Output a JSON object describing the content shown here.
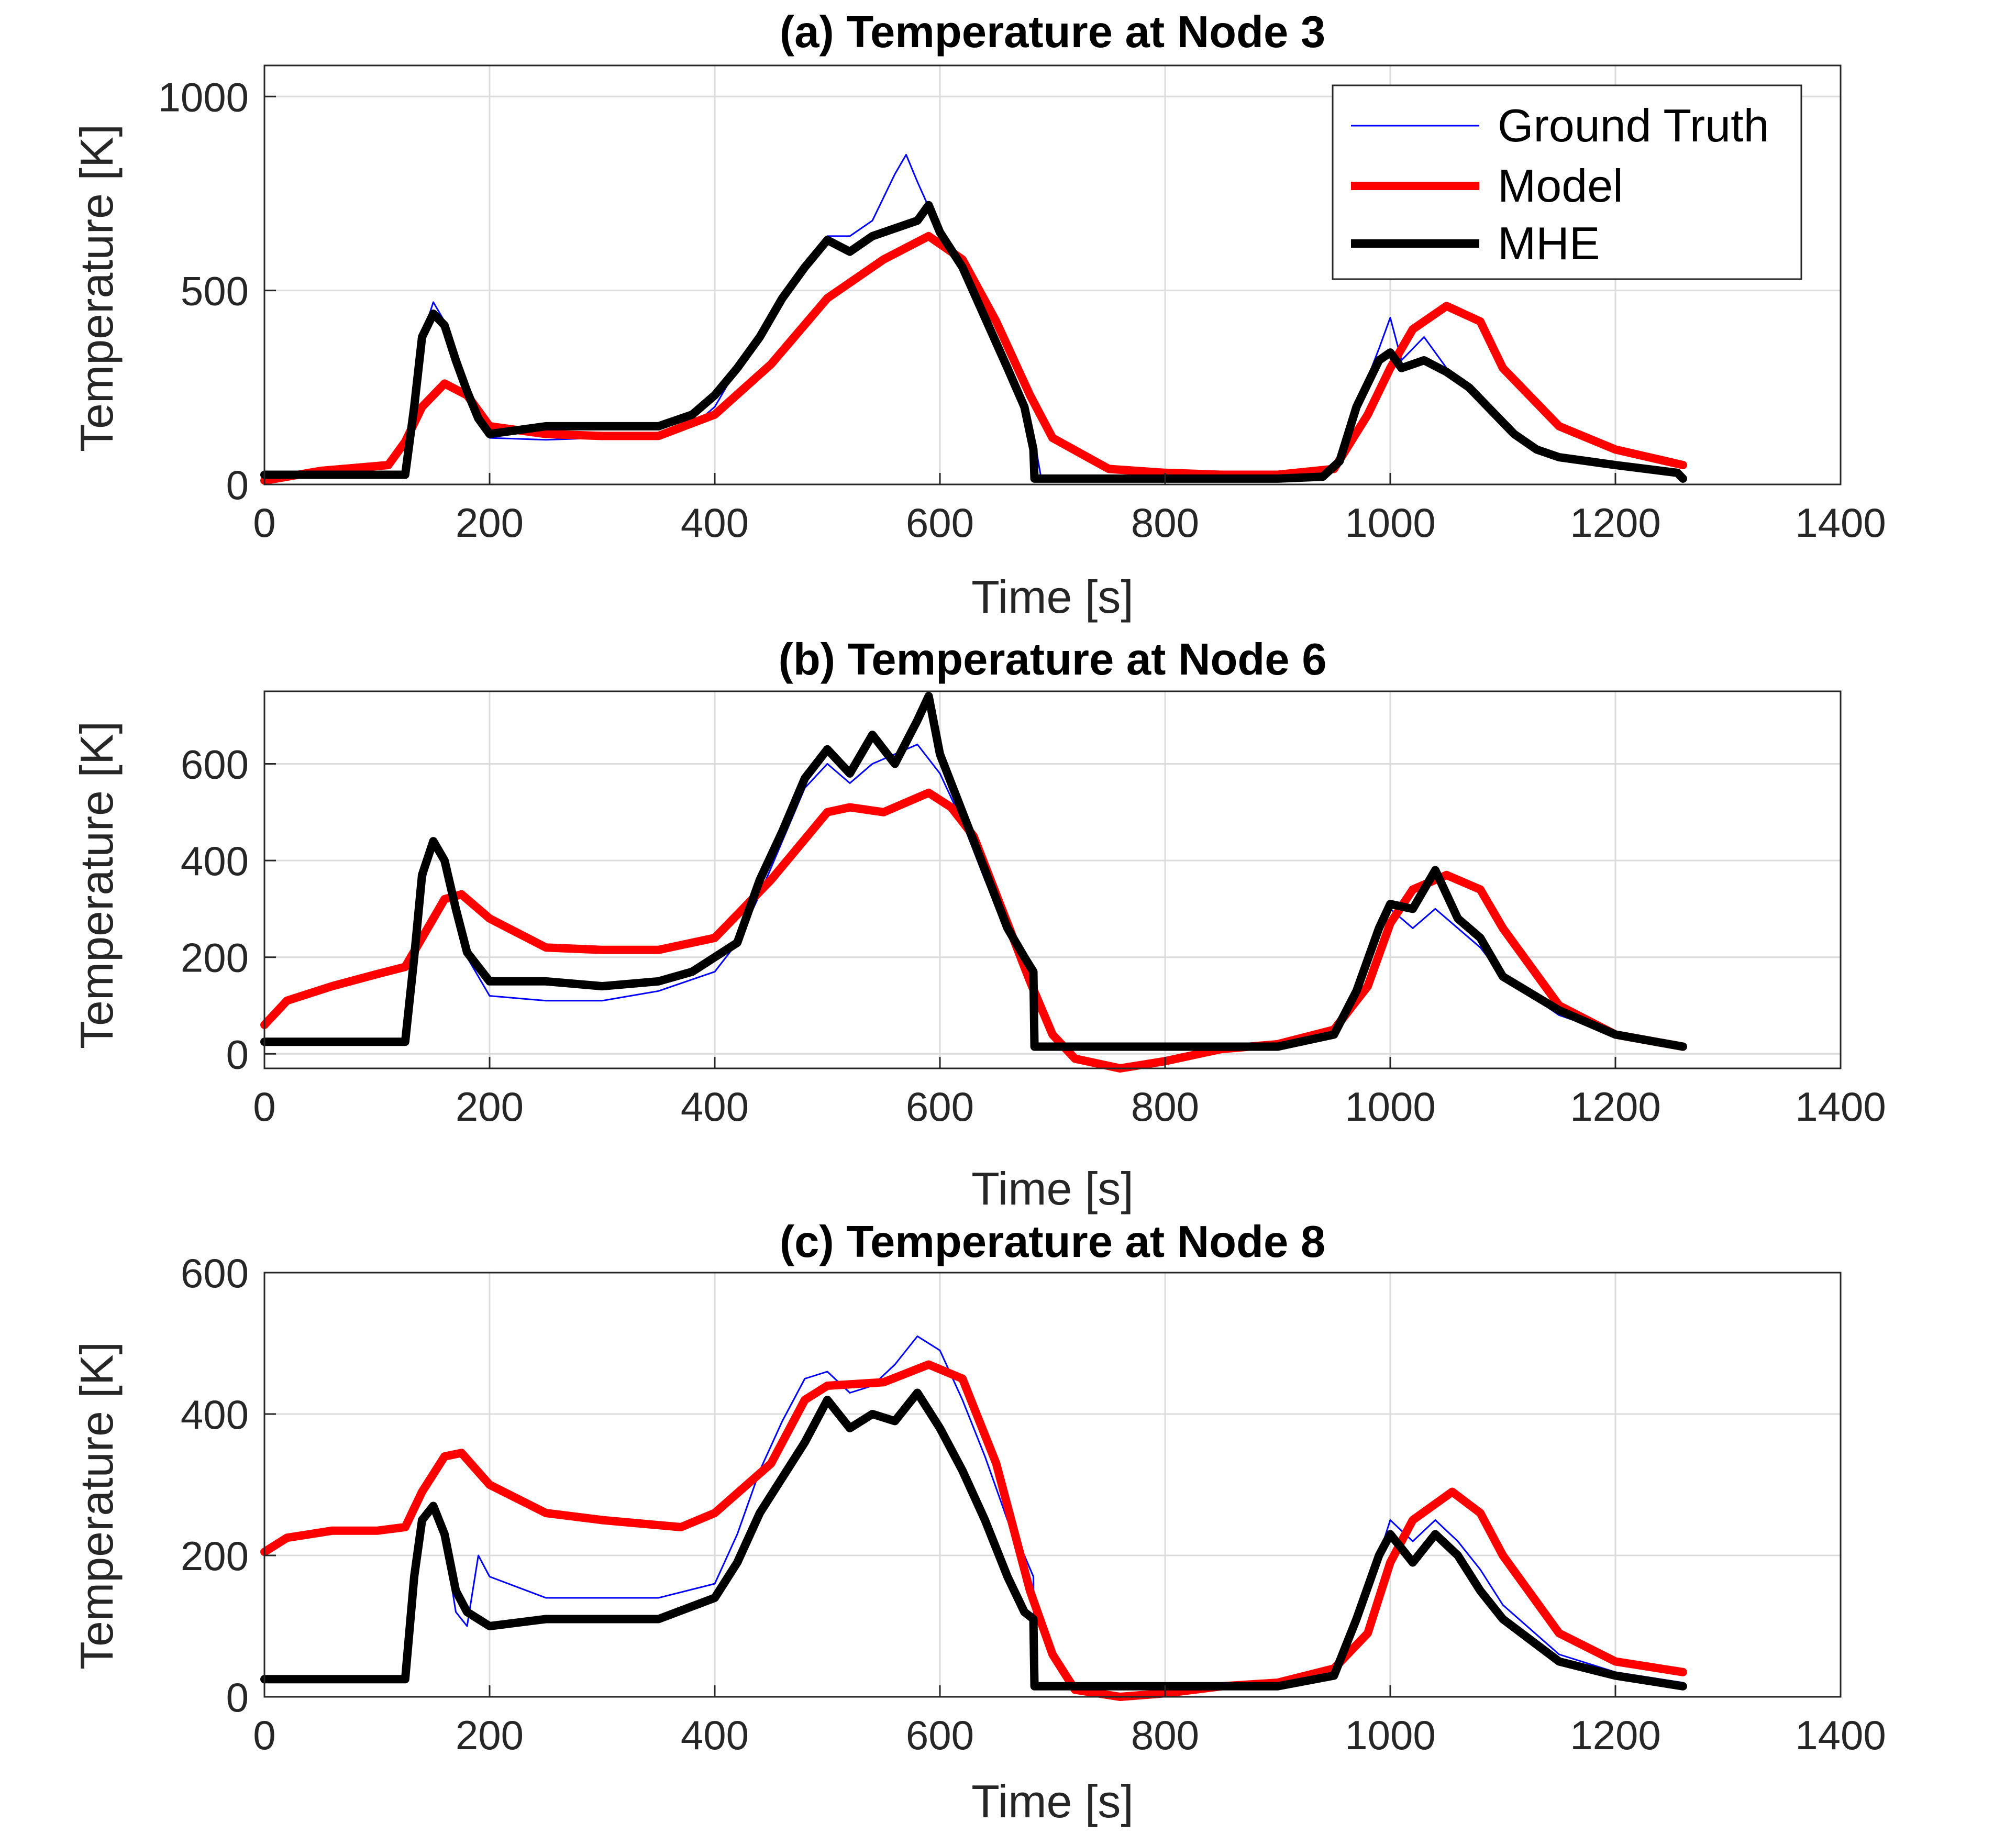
{
  "chart_data": [
    {
      "type": "line",
      "title": "(a) Temperature at Node 3",
      "xlabel": "Time [s]",
      "ylabel": "Temperature [K]",
      "xlim": [
        0,
        1400
      ],
      "ylim": [
        0,
        1080
      ],
      "xticks": [
        0,
        200,
        400,
        600,
        800,
        1000,
        1200,
        1400
      ],
      "yticks": [
        0,
        500,
        1000
      ],
      "grid": true,
      "legend_position": "top-right",
      "series": [
        {
          "name": "Ground Truth",
          "style": "thin",
          "x": [
            0,
            125,
            133,
            140,
            150,
            160,
            170,
            180,
            190,
            200,
            250,
            300,
            350,
            380,
            400,
            420,
            440,
            460,
            480,
            500,
            520,
            540,
            560,
            570,
            580,
            600,
            620,
            640,
            660,
            675,
            683,
            690,
            800,
            900,
            940,
            955,
            970,
            990,
            1000,
            1010,
            1030,
            1050,
            1070,
            1090,
            1110,
            1130,
            1150,
            1200,
            1255,
            1260
          ],
          "y": [
            25,
            30,
            180,
            380,
            470,
            420,
            330,
            250,
            180,
            120,
            115,
            120,
            125,
            150,
            200,
            300,
            380,
            470,
            560,
            640,
            640,
            680,
            800,
            850,
            780,
            650,
            550,
            420,
            300,
            200,
            130,
            15,
            15,
            15,
            20,
            60,
            200,
            350,
            430,
            320,
            380,
            300,
            260,
            200,
            140,
            100,
            70,
            50,
            35,
            20
          ]
        },
        {
          "name": "Model",
          "style": "red",
          "x": [
            0,
            50,
            110,
            125,
            140,
            160,
            180,
            200,
            250,
            300,
            350,
            400,
            450,
            500,
            550,
            590,
            620,
            650,
            680,
            700,
            750,
            800,
            850,
            900,
            950,
            980,
            1000,
            1020,
            1050,
            1080,
            1100,
            1150,
            1200,
            1260
          ],
          "y": [
            10,
            35,
            50,
            110,
            200,
            260,
            230,
            150,
            130,
            125,
            125,
            180,
            310,
            480,
            580,
            640,
            580,
            420,
            230,
            120,
            40,
            30,
            25,
            25,
            40,
            180,
            300,
            400,
            460,
            420,
            300,
            150,
            90,
            50
          ]
        },
        {
          "name": "MHE",
          "style": "black",
          "x": [
            0,
            125,
            133,
            140,
            150,
            160,
            170,
            180,
            190,
            200,
            250,
            300,
            350,
            380,
            400,
            420,
            440,
            460,
            480,
            500,
            520,
            540,
            560,
            580,
            590,
            600,
            620,
            640,
            660,
            675,
            683,
            684,
            800,
            900,
            940,
            955,
            970,
            990,
            1000,
            1010,
            1030,
            1050,
            1070,
            1090,
            1110,
            1130,
            1150,
            1200,
            1255,
            1260
          ],
          "y": [
            25,
            25,
            200,
            380,
            440,
            410,
            320,
            240,
            170,
            130,
            150,
            150,
            150,
            180,
            230,
            300,
            380,
            480,
            560,
            630,
            600,
            640,
            660,
            680,
            720,
            650,
            560,
            430,
            300,
            200,
            90,
            15,
            15,
            15,
            20,
            60,
            200,
            320,
            340,
            300,
            320,
            290,
            250,
            190,
            130,
            90,
            70,
            50,
            30,
            15
          ]
        }
      ]
    },
    {
      "type": "line",
      "title": "(b) Temperature at Node 6",
      "xlabel": "Time [s]",
      "ylabel": "Temperature [K]",
      "xlim": [
        0,
        1400
      ],
      "ylim": [
        -30,
        750
      ],
      "xticks": [
        0,
        200,
        400,
        600,
        800,
        1000,
        1200,
        1400
      ],
      "yticks": [
        0,
        200,
        400,
        600
      ],
      "grid": true,
      "series": [
        {
          "name": "Ground Truth",
          "style": "thin",
          "x": [
            0,
            125,
            133,
            140,
            150,
            160,
            170,
            180,
            200,
            250,
            300,
            350,
            400,
            420,
            440,
            460,
            480,
            500,
            520,
            540,
            560,
            580,
            600,
            620,
            640,
            660,
            675,
            683,
            684,
            900,
            950,
            970,
            990,
            1000,
            1020,
            1040,
            1060,
            1080,
            1100,
            1150,
            1200,
            1260
          ],
          "y": [
            25,
            25,
            180,
            340,
            430,
            400,
            300,
            200,
            120,
            110,
            110,
            130,
            170,
            230,
            330,
            440,
            550,
            600,
            560,
            600,
            620,
            640,
            580,
            480,
            360,
            250,
            190,
            170,
            15,
            15,
            40,
            130,
            250,
            300,
            260,
            300,
            260,
            220,
            160,
            80,
            40,
            20
          ]
        },
        {
          "name": "Model",
          "style": "red",
          "x": [
            0,
            20,
            60,
            100,
            125,
            140,
            160,
            175,
            200,
            250,
            300,
            350,
            400,
            450,
            500,
            520,
            550,
            590,
            610,
            630,
            650,
            680,
            700,
            720,
            760,
            800,
            850,
            900,
            950,
            980,
            1000,
            1020,
            1050,
            1080,
            1100,
            1150,
            1200,
            1260
          ],
          "y": [
            60,
            110,
            140,
            165,
            180,
            240,
            320,
            330,
            280,
            220,
            215,
            215,
            240,
            360,
            500,
            510,
            500,
            540,
            510,
            450,
            330,
            150,
            40,
            -10,
            -30,
            -15,
            10,
            20,
            50,
            140,
            270,
            340,
            370,
            340,
            260,
            100,
            40,
            15
          ]
        },
        {
          "name": "MHE",
          "style": "black",
          "x": [
            0,
            125,
            133,
            140,
            150,
            160,
            170,
            180,
            200,
            250,
            300,
            350,
            380,
            400,
            420,
            440,
            460,
            480,
            500,
            520,
            540,
            560,
            580,
            590,
            600,
            620,
            640,
            660,
            675,
            683,
            684,
            900,
            950,
            970,
            990,
            1000,
            1020,
            1040,
            1060,
            1080,
            1100,
            1150,
            1200,
            1260
          ],
          "y": [
            25,
            25,
            200,
            370,
            440,
            400,
            300,
            210,
            150,
            150,
            140,
            150,
            170,
            200,
            230,
            360,
            460,
            570,
            630,
            580,
            660,
            600,
            690,
            740,
            620,
            500,
            380,
            260,
            200,
            170,
            15,
            15,
            40,
            130,
            260,
            310,
            300,
            380,
            280,
            240,
            160,
            90,
            40,
            15
          ]
        }
      ]
    },
    {
      "type": "line",
      "title": "(c) Temperature at Node 8",
      "xlabel": "Time [s]",
      "ylabel": "Temperature [K]",
      "xlim": [
        0,
        1400
      ],
      "ylim": [
        0,
        600
      ],
      "xticks": [
        0,
        200,
        400,
        600,
        800,
        1000,
        1200,
        1400
      ],
      "yticks": [
        0,
        200,
        400,
        600
      ],
      "grid": true,
      "series": [
        {
          "name": "Ground Truth",
          "style": "thin",
          "x": [
            0,
            125,
            133,
            140,
            150,
            160,
            170,
            180,
            190,
            200,
            250,
            300,
            350,
            400,
            420,
            440,
            460,
            480,
            500,
            520,
            540,
            560,
            580,
            600,
            620,
            640,
            660,
            675,
            683,
            684,
            900,
            950,
            970,
            990,
            1000,
            1020,
            1040,
            1060,
            1080,
            1100,
            1150,
            1200,
            1260
          ],
          "y": [
            25,
            25,
            150,
            250,
            270,
            220,
            120,
            100,
            200,
            170,
            140,
            140,
            140,
            160,
            230,
            320,
            390,
            450,
            460,
            430,
            440,
            470,
            510,
            490,
            420,
            340,
            250,
            200,
            170,
            15,
            15,
            30,
            110,
            200,
            250,
            220,
            250,
            220,
            180,
            130,
            60,
            35,
            20
          ]
        },
        {
          "name": "Model",
          "style": "red",
          "x": [
            0,
            20,
            60,
            100,
            125,
            140,
            160,
            175,
            200,
            250,
            300,
            370,
            400,
            450,
            480,
            500,
            550,
            590,
            620,
            650,
            680,
            700,
            720,
            760,
            800,
            850,
            900,
            950,
            980,
            1000,
            1020,
            1055,
            1080,
            1100,
            1150,
            1200,
            1260
          ],
          "y": [
            205,
            225,
            235,
            235,
            240,
            290,
            340,
            345,
            300,
            260,
            250,
            240,
            260,
            330,
            420,
            440,
            445,
            470,
            450,
            330,
            150,
            60,
            10,
            0,
            5,
            15,
            20,
            40,
            90,
            190,
            250,
            290,
            260,
            200,
            90,
            50,
            35
          ]
        },
        {
          "name": "MHE",
          "style": "black",
          "x": [
            0,
            125,
            133,
            140,
            150,
            160,
            170,
            180,
            200,
            250,
            300,
            350,
            400,
            420,
            440,
            460,
            480,
            500,
            520,
            540,
            560,
            580,
            600,
            620,
            640,
            660,
            675,
            683,
            684,
            900,
            950,
            970,
            990,
            1000,
            1020,
            1040,
            1060,
            1080,
            1100,
            1150,
            1200,
            1260
          ],
          "y": [
            25,
            25,
            170,
            250,
            270,
            230,
            150,
            120,
            100,
            110,
            110,
            110,
            140,
            190,
            260,
            310,
            360,
            420,
            380,
            400,
            390,
            430,
            380,
            320,
            250,
            170,
            120,
            110,
            15,
            15,
            30,
            110,
            200,
            230,
            190,
            230,
            200,
            150,
            110,
            50,
            30,
            15
          ]
        }
      ]
    }
  ],
  "legend": [
    {
      "label": "Ground Truth",
      "color": "#0000FF",
      "style": "thin"
    },
    {
      "label": "Model",
      "color": "#FF0000",
      "style": "red"
    },
    {
      "label": "MHE",
      "color": "#000000",
      "style": "black"
    }
  ],
  "colors": {
    "ground_truth": "#0000FF",
    "model": "#FF0000",
    "mhe": "#000000",
    "grid": "#DCDCDC",
    "axis": "#262626"
  }
}
